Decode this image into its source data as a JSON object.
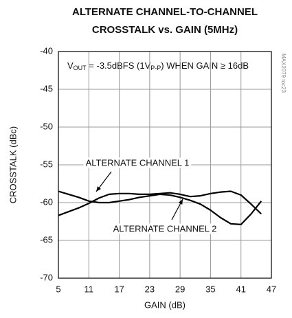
{
  "chart_data": {
    "type": "line",
    "title": [
      "ALTERNATE CHANNEL-TO-CHANNEL",
      "CROSSTALK vs. GAIN (5MHz)"
    ],
    "annotation": [
      "V",
      "OUT",
      " = -3.5dBFS (1V",
      "P-P",
      ") WHEN GAIN  ≥ 16dB"
    ],
    "watermark": "MAX2079 toc23",
    "xlabel": "GAIN (dB)",
    "ylabel": "CROSSTALK (dBc)",
    "x": [
      5,
      7,
      9,
      11,
      13,
      15,
      17,
      19,
      21,
      23,
      25,
      27,
      29,
      31,
      33,
      35,
      37,
      39,
      41,
      43,
      45
    ],
    "series": [
      {
        "name": "ALTERNATE CHANNEL 1",
        "color": "#000000",
        "values": [
          -61.7,
          -61.2,
          -60.7,
          -60.1,
          -59.4,
          -58.9,
          -58.8,
          -58.8,
          -58.9,
          -58.9,
          -58.8,
          -58.7,
          -58.9,
          -59.2,
          -59.1,
          -58.8,
          -58.6,
          -58.5,
          -59.0,
          -60.2,
          -61.5
        ]
      },
      {
        "name": "ALTERNATE CHANNEL 2",
        "color": "#000000",
        "values": [
          -58.5,
          -58.9,
          -59.3,
          -59.8,
          -60.0,
          -60.0,
          -59.8,
          -59.6,
          -59.3,
          -59.1,
          -58.9,
          -59.0,
          -59.3,
          -59.7,
          -60.2,
          -61.0,
          -62.0,
          -62.8,
          -62.9,
          -61.5,
          -59.8
        ]
      }
    ],
    "xlim": [
      5,
      47
    ],
    "xticks": [
      5,
      11,
      17,
      23,
      29,
      35,
      41,
      47
    ],
    "ylim": [
      -70,
      -40
    ],
    "yticks": [
      -40,
      -45,
      -50,
      -55,
      -60,
      -65,
      -70
    ],
    "grid": true
  }
}
